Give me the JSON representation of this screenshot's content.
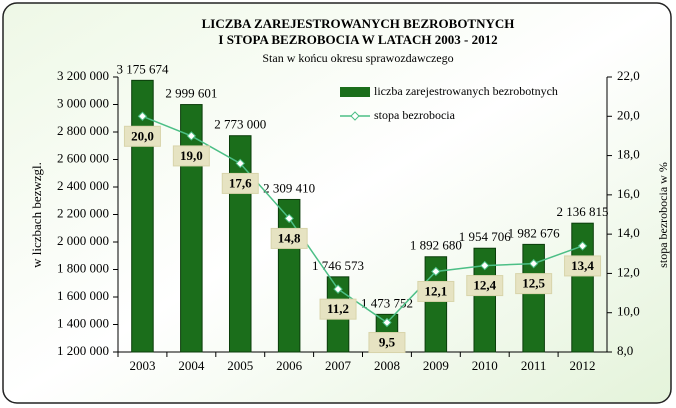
{
  "chart_data": {
    "type": "bar",
    "title": "LICZBA ZAREJESTROWANYCH BEZROBOTNYCH",
    "title_line2": "I STOPA BEZROBOCIA W LATACH 2003 - 2012",
    "subtitle": "Stan w końcu okresu sprawozdawczego",
    "ylabel": "w liczbach bezwzgl.",
    "y2label": "stopa bezrobocia w %",
    "categories": [
      "2003",
      "2004",
      "2005",
      "2006",
      "2007",
      "2008",
      "2009",
      "2010",
      "2011",
      "2012"
    ],
    "series": [
      {
        "name": "liczba zarejestrowanych bezrobotnych",
        "type": "bar",
        "color": "#1b6e1b",
        "values": [
          3175674,
          2999601,
          2773000,
          2309410,
          1746573,
          1473752,
          1892680,
          1954706,
          1982676,
          2136815
        ],
        "value_labels": [
          "3 175 674",
          "2 999 601",
          "2 773 000",
          "2 309 410",
          "1 746 573",
          "1 473 752",
          "1 892 680",
          "1 954 706",
          "1 982 676",
          "2 136 815"
        ]
      },
      {
        "name": "stopa bezrobocia",
        "type": "line",
        "axis": "y2",
        "color": "#4cbf86",
        "values": [
          20.0,
          19.0,
          17.6,
          14.8,
          11.2,
          9.5,
          12.1,
          12.4,
          12.5,
          13.4
        ],
        "value_labels": [
          "20,0",
          "19,0",
          "17,6",
          "14,8",
          "11,2",
          "9,5",
          "12,1",
          "12,4",
          "12,5",
          "13,4"
        ]
      }
    ],
    "ylim": [
      1200000,
      3200000
    ],
    "yticks": [
      {
        "value": 1200000,
        "label": "1 200 000"
      },
      {
        "value": 1400000,
        "label": "1 400 000"
      },
      {
        "value": 1600000,
        "label": "1 600 000"
      },
      {
        "value": 1800000,
        "label": "1 800 000"
      },
      {
        "value": 2000000,
        "label": "2 000 000"
      },
      {
        "value": 2200000,
        "label": "2 200 000"
      },
      {
        "value": 2400000,
        "label": "2 400 000"
      },
      {
        "value": 2600000,
        "label": "2 600 000"
      },
      {
        "value": 2800000,
        "label": "2 800 000"
      },
      {
        "value": 3000000,
        "label": "3 000 000"
      },
      {
        "value": 3200000,
        "label": "3 200 000"
      }
    ],
    "y2lim": [
      8,
      22
    ],
    "y2ticks": [
      {
        "value": 8,
        "label": "8,0"
      },
      {
        "value": 10,
        "label": "10,0"
      },
      {
        "value": 12,
        "label": "12,0"
      },
      {
        "value": 14,
        "label": "14,0"
      },
      {
        "value": 16,
        "label": "16,0"
      },
      {
        "value": 18,
        "label": "18,0"
      },
      {
        "value": 20,
        "label": "20,0"
      },
      {
        "value": 22,
        "label": "22,0"
      }
    ],
    "legend": "upper right",
    "grid": false
  }
}
